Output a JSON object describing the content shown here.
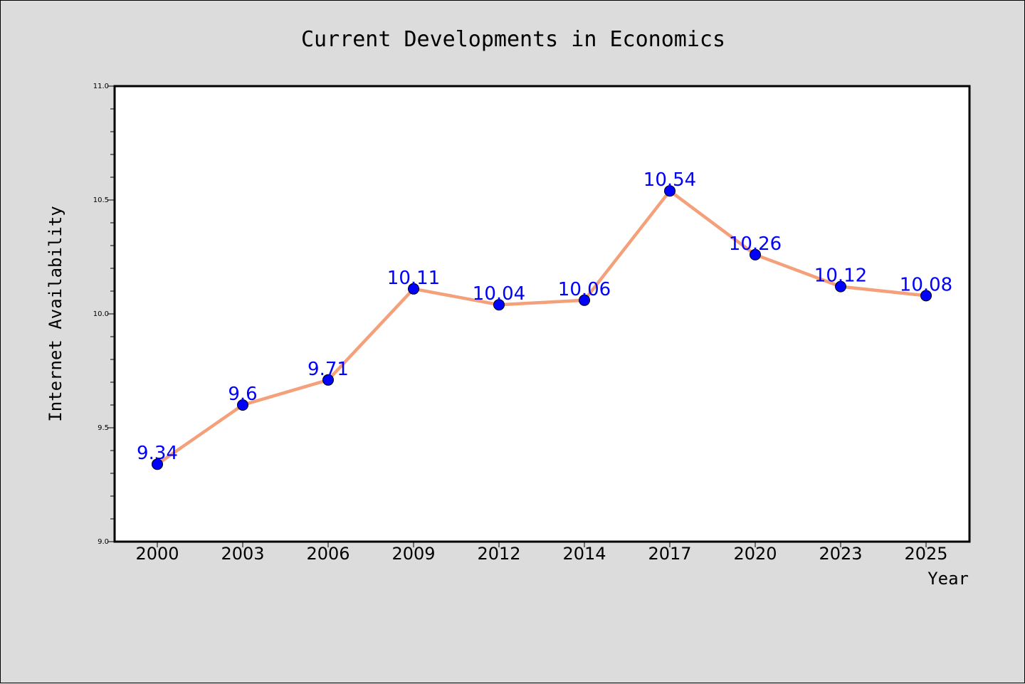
{
  "chart_data": {
    "type": "line",
    "title": "Current Developments in Economics",
    "xlabel": "Year",
    "ylabel": "Internet Availability",
    "categories": [
      "2000",
      "2003",
      "2006",
      "2009",
      "2012",
      "2014",
      "2017",
      "2020",
      "2023",
      "2025"
    ],
    "series": [
      {
        "values": [
          9.34,
          9.6,
          9.71,
          10.11,
          10.04,
          10.06,
          10.54,
          10.26,
          10.12,
          10.08
        ],
        "data_labels": [
          "9.34",
          "9.6",
          "9.71",
          "10.11",
          "10.04",
          "10.06",
          "10.54",
          "10.26",
          "10.12",
          "10.08"
        ],
        "line_color": "#f4a07a",
        "marker_color": "#0000ff"
      }
    ],
    "ylim": [
      9.0,
      11.0
    ],
    "yticks": [
      "9.0",
      "9.5",
      "10.0",
      "10.5",
      "11.0"
    ],
    "grid": false,
    "legend": "none",
    "colors": {
      "background": "#dcdcdc",
      "plot_background": "#ffffff",
      "data_label": "#0000ff"
    }
  }
}
